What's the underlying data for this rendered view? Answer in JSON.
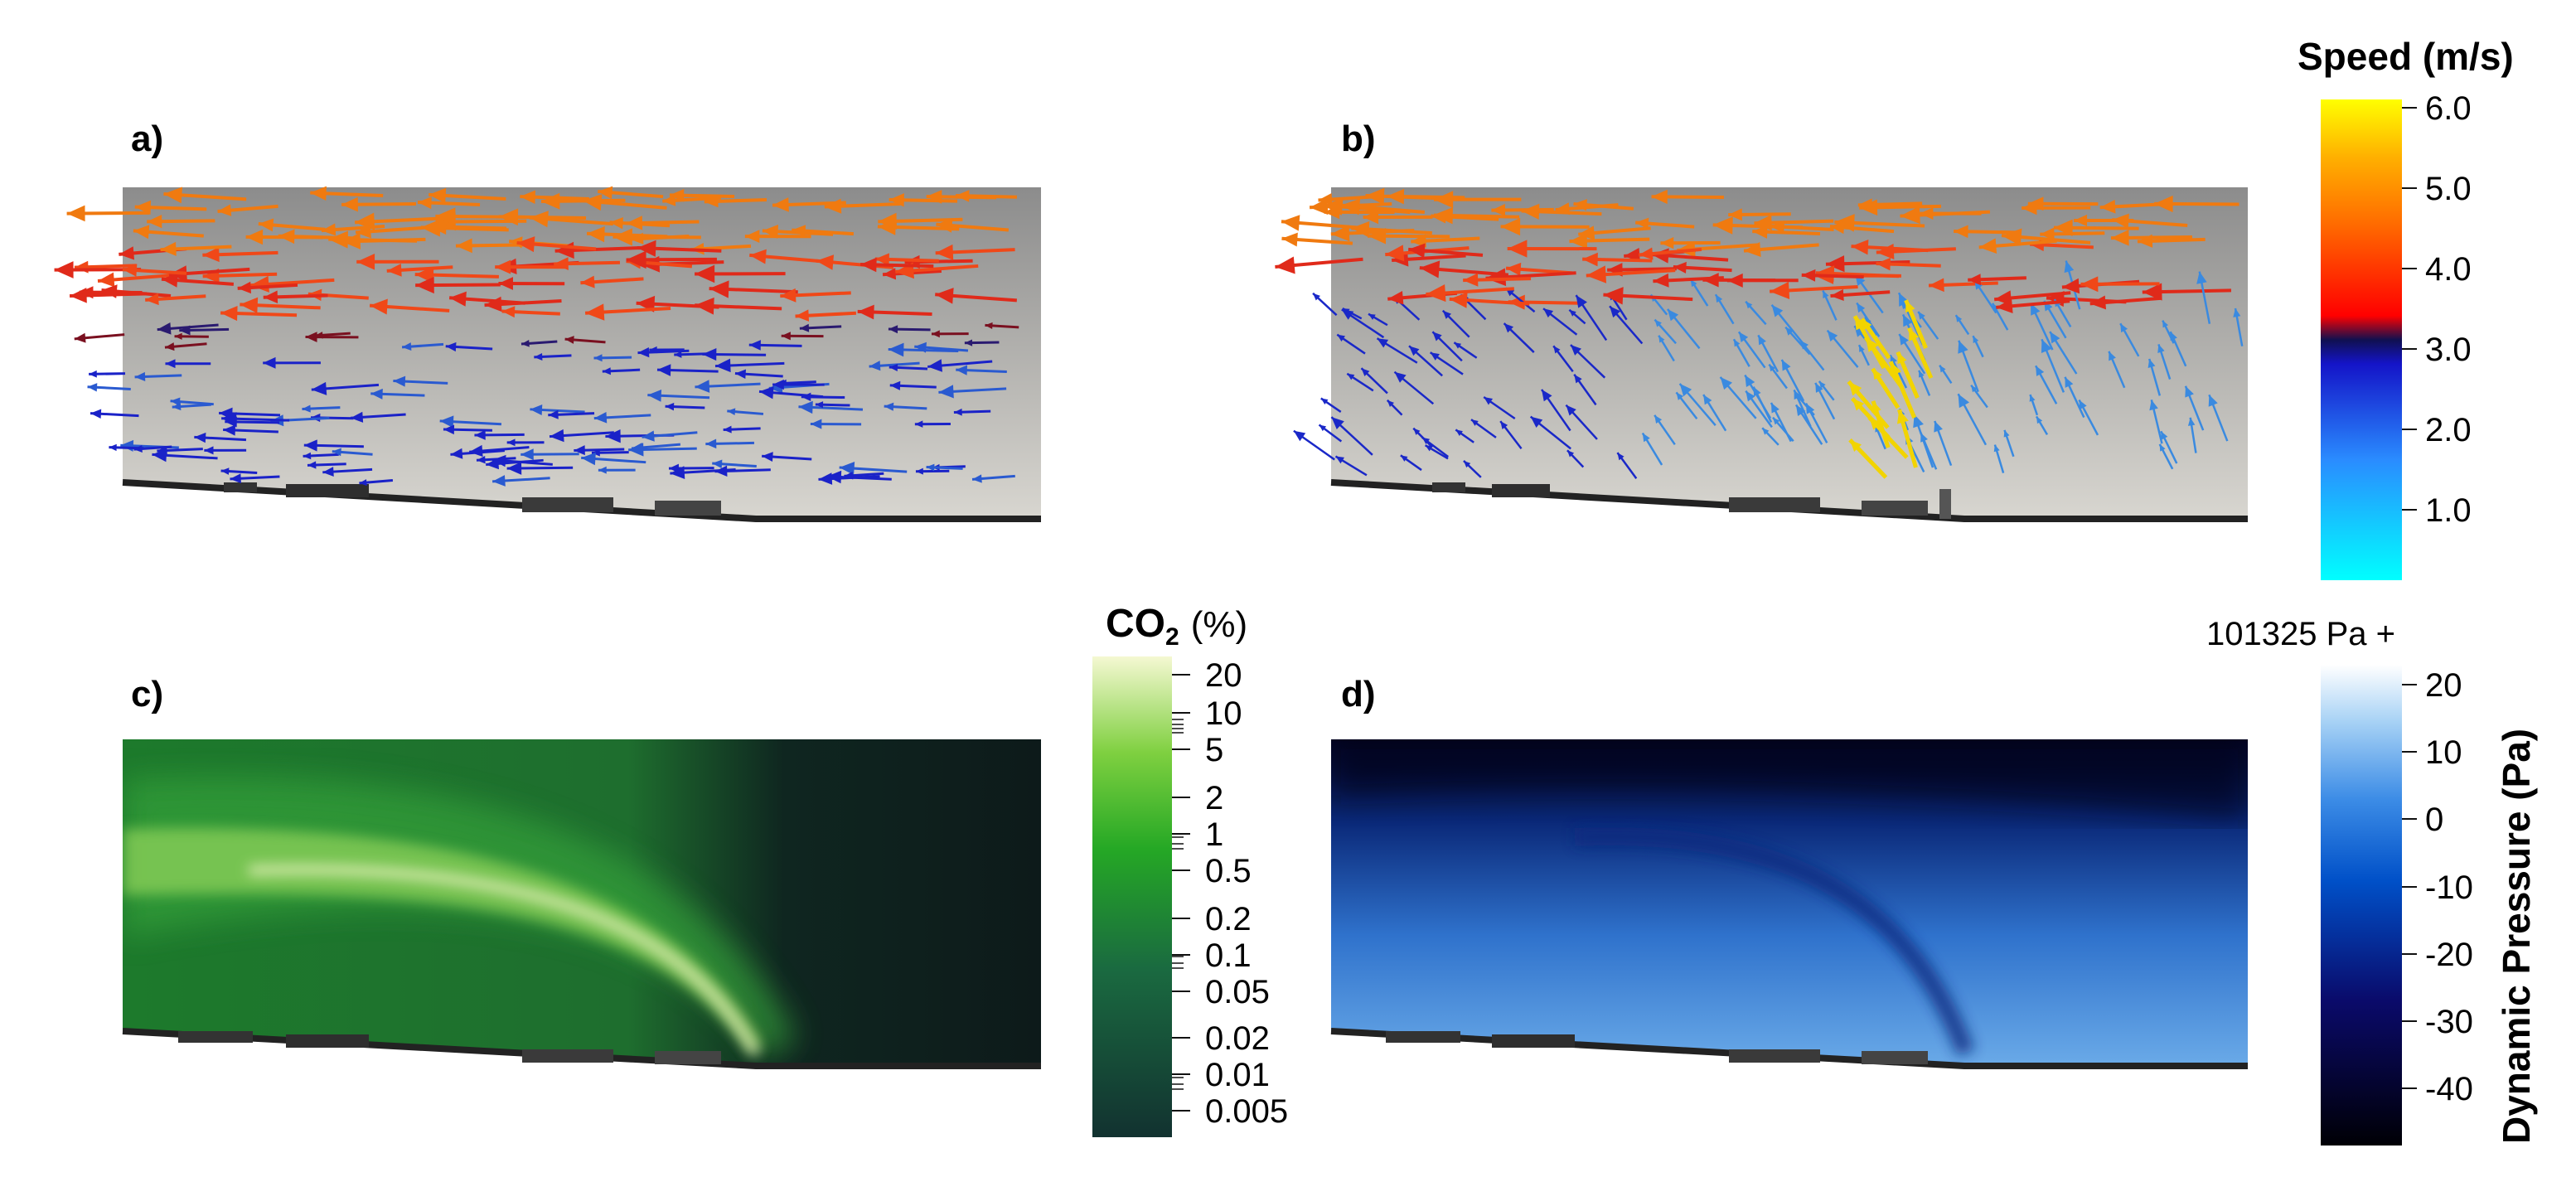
{
  "panels": [
    {
      "id": "a",
      "label": "a)"
    },
    {
      "id": "b",
      "label": "b)"
    },
    {
      "id": "c",
      "label": "c)"
    },
    {
      "id": "d",
      "label": "d)"
    }
  ],
  "colorbars": {
    "speed": {
      "title": "Speed (m/s)",
      "ticks": [
        "6.0",
        "5.0",
        "4.0",
        "3.0",
        "2.0",
        "1.0"
      ],
      "colors": [
        "#00ffff",
        "#1a8cff",
        "#1010c8",
        "#101050",
        "#ff0000",
        "#ff7a00",
        "#ffb000",
        "#ffff00"
      ]
    },
    "co2": {
      "title_main": "CO",
      "title_sub": "2",
      "title_unit": "(%)",
      "ticks": [
        "20",
        "10",
        "5",
        "2",
        "1",
        "0.5",
        "0.2",
        "0.1",
        "0.05",
        "0.02",
        "0.01",
        "0.005"
      ],
      "colors": [
        "#123230",
        "#1a5a3a",
        "#25a025",
        "#7fd040",
        "#f3f7c8"
      ]
    },
    "pressure": {
      "offset_label": "101325 Pa +",
      "title": "Dynamic Pressure (Pa)",
      "ticks": [
        "20",
        "10",
        "0",
        "-10",
        "-20",
        "-30",
        "-40"
      ],
      "colors": [
        "#000005",
        "#0a0a60",
        "#0050c8",
        "#3c8ce6",
        "#a6d1f5",
        "#ffffff"
      ]
    }
  }
}
